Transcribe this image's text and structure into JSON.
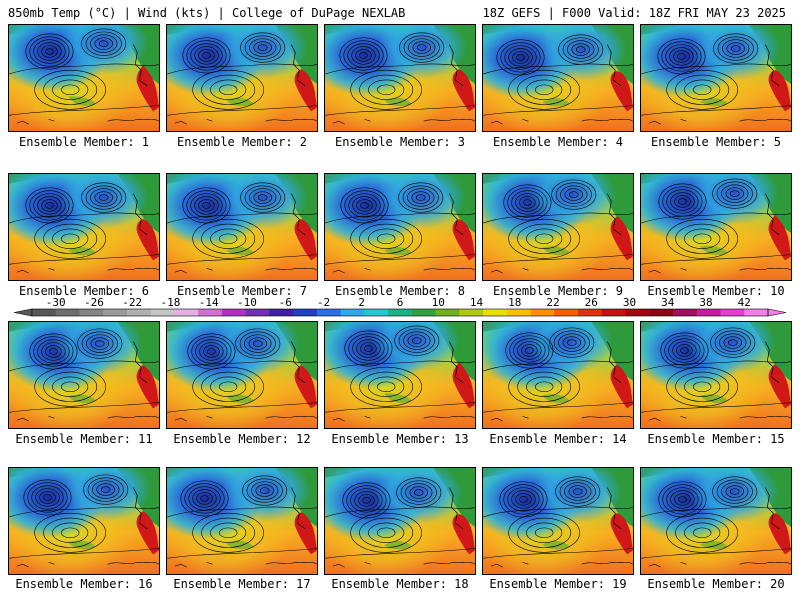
{
  "header": {
    "left": "850mb Temp (°C) | Wind (kts) | College of DuPage NEXLAB",
    "right": "18Z GEFS | F000 Valid: 18Z FRI MAY 23 2025"
  },
  "members": [
    "Ensemble Member: 1",
    "Ensemble Member: 2",
    "Ensemble Member: 3",
    "Ensemble Member: 4",
    "Ensemble Member: 5",
    "Ensemble Member: 6",
    "Ensemble Member: 7",
    "Ensemble Member: 8",
    "Ensemble Member: 9",
    "Ensemble Member: 10",
    "Ensemble Member: 11",
    "Ensemble Member: 12",
    "Ensemble Member: 13",
    "Ensemble Member: 14",
    "Ensemble Member: 15",
    "Ensemble Member: 16",
    "Ensemble Member: 17",
    "Ensemble Member: 18",
    "Ensemble Member: 19",
    "Ensemble Member: 20"
  ],
  "colorbar": {
    "labels": [
      "-30",
      "-26",
      "-22",
      "-18",
      "-14",
      "-10",
      "-6",
      "-2",
      "2",
      "6",
      "10",
      "14",
      "18",
      "22",
      "26",
      "30",
      "34",
      "38",
      "42"
    ],
    "colors": [
      "#585858",
      "#6e6e6e",
      "#848484",
      "#9a9a9a",
      "#b0b0b0",
      "#c6c6c6",
      "#e6b0e6",
      "#d070d0",
      "#b030c0",
      "#7030b0",
      "#4020a0",
      "#2040c0",
      "#2a70e0",
      "#30a8e8",
      "#20c8d0",
      "#20b088",
      "#30a040",
      "#70b020",
      "#b0c810",
      "#e8e000",
      "#f8c000",
      "#f89000",
      "#f06000",
      "#e03010",
      "#c81010",
      "#a00810",
      "#880818",
      "#a01060",
      "#c020a0",
      "#e040d0",
      "#f080e8"
    ]
  },
  "map": {
    "land_green": "#2e9a3a",
    "cold_core": "#1a2e9a",
    "warm_core": "#d01818",
    "sea_orange": "#f59a20"
  }
}
